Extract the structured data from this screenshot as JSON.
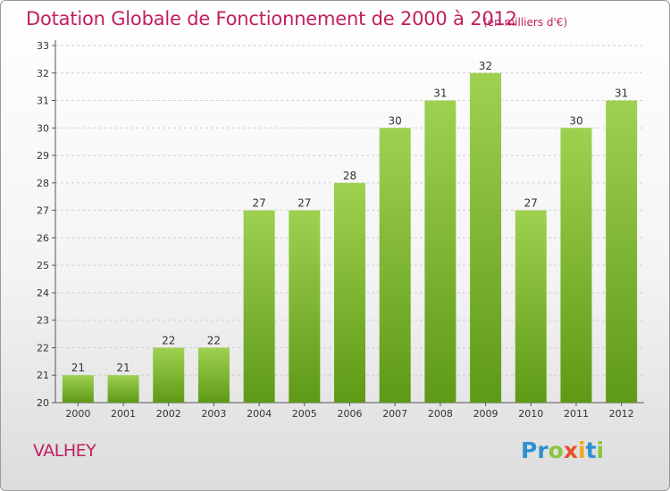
{
  "header": {
    "title": "Dotation Globale de Fonctionnement de 2000 à 2012",
    "subtitle": "(en milliers d'€)"
  },
  "footer": {
    "commune": "VALHEY",
    "logo": {
      "letters": [
        "P",
        "r",
        "o",
        "x",
        "i",
        "t",
        "i"
      ],
      "colors": [
        "#2f8fd0",
        "#2f8fd0",
        "#8bc53f",
        "#e8502f",
        "#f2a81d",
        "#2f8fd0",
        "#8bc53f"
      ]
    }
  },
  "chart_data": {
    "type": "bar",
    "categories": [
      "2000",
      "2001",
      "2002",
      "2003",
      "2004",
      "2005",
      "2006",
      "2007",
      "2008",
      "2009",
      "2010",
      "2011",
      "2012"
    ],
    "values": [
      21,
      21,
      22,
      22,
      27,
      27,
      28,
      30,
      31,
      32,
      27,
      30,
      31
    ],
    "title": "Dotation Globale de Fonctionnement de 2000 à 2012",
    "subtitle": "(en milliers d'€)",
    "ylim": [
      20,
      33
    ],
    "yticks": [
      20,
      21,
      22,
      23,
      24,
      25,
      26,
      27,
      28,
      29,
      30,
      31,
      32,
      33
    ],
    "grid": true,
    "data_labels": true,
    "colors": {
      "bar_top": "#9fd150",
      "bar_bottom": "#5e9a16",
      "grid": "#cfcfcf",
      "label": "#333333"
    }
  }
}
